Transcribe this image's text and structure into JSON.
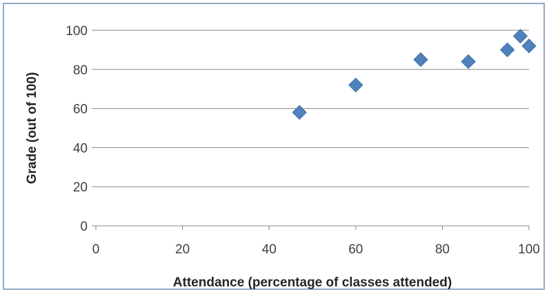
{
  "chart_data": {
    "type": "scatter",
    "xlabel": "Attendance (percentage of classes attended)",
    "ylabel": "Grade (out of 100)",
    "xlim": [
      0,
      100
    ],
    "ylim": [
      0,
      100
    ],
    "x_ticks": [
      0,
      20,
      40,
      60,
      80,
      100
    ],
    "y_ticks": [
      0,
      20,
      40,
      60,
      80,
      100
    ],
    "grid": "horizontal",
    "legend": "none",
    "marker": "diamond",
    "color": "#4f81bd",
    "series": [
      {
        "points": [
          {
            "x": 47,
            "y": 58
          },
          {
            "x": 60,
            "y": 72
          },
          {
            "x": 75,
            "y": 85
          },
          {
            "x": 86,
            "y": 84
          },
          {
            "x": 95,
            "y": 90
          },
          {
            "x": 98,
            "y": 97
          },
          {
            "x": 100,
            "y": 92
          }
        ]
      }
    ]
  }
}
